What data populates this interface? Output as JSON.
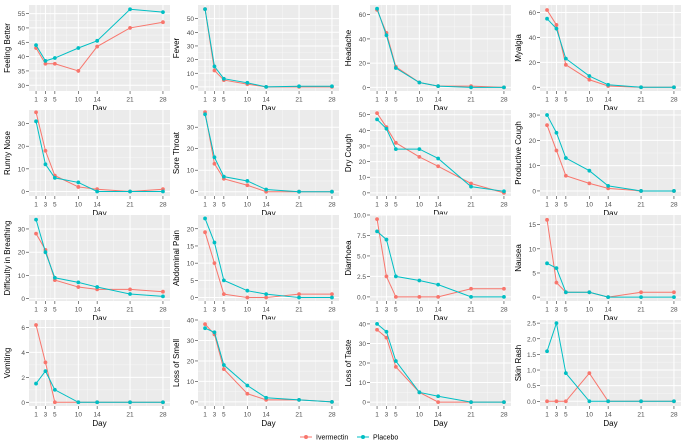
{
  "chart_data": [
    {
      "type": "line",
      "ylabel": "Feeling Better",
      "xlabel": "Day",
      "x": [
        1,
        3,
        5,
        10,
        14,
        21,
        28
      ],
      "ylim": [
        28,
        58
      ],
      "yticks": [
        30,
        35,
        40,
        45,
        50,
        55
      ],
      "series": [
        {
          "name": "Ivermectin",
          "values": [
            43,
            37.5,
            37.5,
            35,
            43.5,
            50,
            52
          ]
        },
        {
          "name": "Placebo",
          "values": [
            44,
            38.5,
            39.5,
            43,
            45.5,
            56.5,
            55.5
          ]
        }
      ]
    },
    {
      "type": "line",
      "ylabel": "Fever",
      "xlabel": "Day",
      "x": [
        1,
        3,
        5,
        10,
        14,
        21,
        28
      ],
      "ylim": [
        -3,
        60
      ],
      "yticks": [
        0,
        10,
        20,
        30,
        40,
        50
      ],
      "series": [
        {
          "name": "Ivermectin",
          "values": [
            57,
            12,
            5,
            2,
            0,
            0,
            0
          ]
        },
        {
          "name": "Placebo",
          "values": [
            57,
            15,
            6,
            3,
            0,
            0.5,
            0.5
          ]
        }
      ]
    },
    {
      "type": "line",
      "ylabel": "Headache",
      "xlabel": "Day",
      "x": [
        1,
        3,
        5,
        10,
        14,
        21,
        28
      ],
      "ylim": [
        -3,
        68
      ],
      "yticks": [
        0,
        20,
        40,
        60
      ],
      "series": [
        {
          "name": "Ivermectin",
          "values": [
            64,
            45,
            17,
            4,
            1,
            1,
            0
          ]
        },
        {
          "name": "Placebo",
          "values": [
            65,
            43,
            16,
            4,
            1,
            0,
            0
          ]
        }
      ]
    },
    {
      "type": "line",
      "ylabel": "Myalgia",
      "xlabel": "Day",
      "x": [
        1,
        3,
        5,
        10,
        14,
        21,
        28
      ],
      "ylim": [
        -3,
        66
      ],
      "yticks": [
        0,
        20,
        40,
        60
      ],
      "series": [
        {
          "name": "Ivermectin",
          "values": [
            62,
            50,
            18,
            6,
            1,
            0,
            0
          ]
        },
        {
          "name": "Placebo",
          "values": [
            55,
            47,
            23,
            9,
            2,
            0,
            0
          ]
        }
      ]
    },
    {
      "type": "line",
      "ylabel": "Runny Nose",
      "xlabel": "Day",
      "x": [
        1,
        3,
        5,
        10,
        14,
        21,
        28
      ],
      "ylim": [
        -2,
        36
      ],
      "yticks": [
        0,
        10,
        20,
        30
      ],
      "series": [
        {
          "name": "Ivermectin",
          "values": [
            35,
            18,
            7,
            2,
            1,
            0,
            1
          ]
        },
        {
          "name": "Placebo",
          "values": [
            31,
            12,
            6,
            4,
            0,
            0,
            0
          ]
        }
      ]
    },
    {
      "type": "line",
      "ylabel": "Sore Throat",
      "xlabel": "Day",
      "x": [
        1,
        3,
        5,
        10,
        14,
        21,
        28
      ],
      "ylim": [
        -2,
        38
      ],
      "yticks": [
        0,
        10,
        20,
        30
      ],
      "series": [
        {
          "name": "Ivermectin",
          "values": [
            37,
            13,
            6,
            3,
            0,
            0,
            0
          ]
        },
        {
          "name": "Placebo",
          "values": [
            36,
            16,
            7,
            5,
            1,
            0,
            0
          ]
        }
      ]
    },
    {
      "type": "line",
      "ylabel": "Dry Cough",
      "xlabel": "Day",
      "x": [
        1,
        3,
        5,
        10,
        14,
        21,
        28
      ],
      "ylim": [
        -2,
        53
      ],
      "yticks": [
        0,
        10,
        20,
        30,
        40,
        50
      ],
      "series": [
        {
          "name": "Ivermectin",
          "values": [
            51,
            42,
            32,
            23,
            17,
            6,
            0
          ]
        },
        {
          "name": "Placebo",
          "values": [
            47,
            41,
            28,
            28,
            22,
            4,
            1
          ]
        }
      ]
    },
    {
      "type": "line",
      "ylabel": "Productive Cough",
      "xlabel": "Day",
      "x": [
        1,
        3,
        5,
        10,
        14,
        21,
        28
      ],
      "ylim": [
        -2,
        32
      ],
      "yticks": [
        0,
        10,
        20,
        30
      ],
      "series": [
        {
          "name": "Ivermectin",
          "values": [
            26,
            16,
            6,
            3,
            1,
            0,
            0
          ]
        },
        {
          "name": "Placebo",
          "values": [
            30,
            23,
            13,
            8,
            2,
            0,
            0
          ]
        }
      ]
    },
    {
      "type": "line",
      "ylabel": "Difficulty in Breathing",
      "xlabel": "Day",
      "x": [
        1,
        3,
        5,
        10,
        14,
        21,
        28
      ],
      "ylim": [
        -1,
        36
      ],
      "yticks": [
        0,
        10,
        20,
        30
      ],
      "series": [
        {
          "name": "Ivermectin",
          "values": [
            28,
            21,
            8,
            5,
            4,
            4,
            3
          ]
        },
        {
          "name": "Placebo",
          "values": [
            34,
            20,
            9,
            7,
            5,
            2,
            1
          ]
        }
      ]
    },
    {
      "type": "line",
      "ylabel": "Abdominal Pain",
      "xlabel": "Day",
      "x": [
        1,
        3,
        5,
        10,
        14,
        21,
        28
      ],
      "ylim": [
        -1,
        24
      ],
      "yticks": [
        0,
        5,
        10,
        15,
        20
      ],
      "series": [
        {
          "name": "Ivermectin",
          "values": [
            19,
            10,
            1,
            0,
            0,
            1,
            1
          ]
        },
        {
          "name": "Placebo",
          "values": [
            23,
            16,
            5,
            2,
            1,
            0,
            0
          ]
        }
      ]
    },
    {
      "type": "line",
      "ylabel": "Diarrhoea",
      "xlabel": "Day",
      "x": [
        1,
        3,
        5,
        10,
        14,
        21,
        28
      ],
      "ylim": [
        -0.5,
        10
      ],
      "yticks": [
        0.0,
        2.5,
        5.0,
        7.5,
        10.0
      ],
      "series": [
        {
          "name": "Ivermectin",
          "values": [
            9.5,
            2.5,
            0,
            0,
            0,
            1,
            1
          ]
        },
        {
          "name": "Placebo",
          "values": [
            8,
            7,
            2.5,
            2,
            1.5,
            0,
            0
          ]
        }
      ]
    },
    {
      "type": "line",
      "ylabel": "Nausea",
      "xlabel": "Day",
      "x": [
        1,
        3,
        5,
        10,
        14,
        21,
        28
      ],
      "ylim": [
        -0.8,
        17
      ],
      "yticks": [
        0,
        5,
        10,
        15
      ],
      "series": [
        {
          "name": "Ivermectin",
          "values": [
            16,
            3,
            1,
            1,
            0,
            1,
            1
          ]
        },
        {
          "name": "Placebo",
          "values": [
            7,
            6,
            1,
            1,
            0,
            0,
            0
          ]
        }
      ]
    },
    {
      "type": "line",
      "ylabel": "Vomiting",
      "xlabel": "Day",
      "x": [
        1,
        3,
        5,
        10,
        14,
        21,
        28
      ],
      "ylim": [
        -0.3,
        6.6
      ],
      "yticks": [
        0,
        2,
        4,
        6
      ],
      "series": [
        {
          "name": "Ivermectin",
          "values": [
            6.2,
            3.2,
            0,
            0,
            0,
            0,
            0
          ]
        },
        {
          "name": "Placebo",
          "values": [
            1.5,
            2.5,
            1,
            0,
            0,
            0,
            0
          ]
        }
      ]
    },
    {
      "type": "line",
      "ylabel": "Loss of Smell",
      "xlabel": "Day",
      "x": [
        1,
        3,
        5,
        10,
        14,
        21,
        28
      ],
      "ylim": [
        -2,
        40
      ],
      "yticks": [
        0,
        10,
        20,
        30,
        40
      ],
      "series": [
        {
          "name": "Ivermectin",
          "values": [
            38,
            33,
            16,
            4,
            1,
            1,
            0
          ]
        },
        {
          "name": "Placebo",
          "values": [
            36,
            34,
            18,
            8,
            2,
            1,
            0
          ]
        }
      ]
    },
    {
      "type": "line",
      "ylabel": "Loss of Taste",
      "xlabel": "Day",
      "x": [
        1,
        3,
        5,
        10,
        14,
        21,
        28
      ],
      "ylim": [
        -2,
        42
      ],
      "yticks": [
        0,
        10,
        20,
        30,
        40
      ],
      "series": [
        {
          "name": "Ivermectin",
          "values": [
            37,
            33,
            18,
            5,
            0,
            0,
            0
          ]
        },
        {
          "name": "Placebo",
          "values": [
            40,
            36,
            21,
            5,
            3,
            0,
            0
          ]
        }
      ]
    },
    {
      "type": "line",
      "ylabel": "Skin Rash",
      "xlabel": "Day",
      "x": [
        1,
        3,
        5,
        10,
        14,
        21,
        28
      ],
      "ylim": [
        -0.15,
        2.6
      ],
      "yticks": [
        0.0,
        0.5,
        1.0,
        1.5,
        2.0,
        2.5
      ],
      "series": [
        {
          "name": "Ivermectin",
          "values": [
            0,
            0,
            0,
            0.9,
            0,
            0,
            0
          ]
        },
        {
          "name": "Placebo",
          "values": [
            1.6,
            2.5,
            0.9,
            0,
            0,
            0,
            0
          ]
        }
      ]
    }
  ],
  "legend": [
    {
      "name": "Ivermectin",
      "color": "#F8766D"
    },
    {
      "name": "Placebo",
      "color": "#00BFC4"
    }
  ]
}
